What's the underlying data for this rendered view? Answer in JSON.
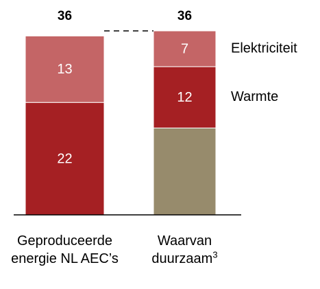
{
  "chart_data": {
    "type": "stacked_bar",
    "categories": [
      "Geproduceerde energie NL AEC’s",
      "Waarvan duurzaam"
    ],
    "category_notes": [
      null,
      "3"
    ],
    "series": [
      {
        "color": "#978b6c",
        "values": [
          null,
          17
        ],
        "show_labels": false
      },
      {
        "name": "Warmte",
        "color": "#a52023",
        "values": [
          22,
          12
        ],
        "show_labels": true
      },
      {
        "name": "Elektriciteit",
        "color": "#c46566",
        "values": [
          13,
          7
        ],
        "show_labels": true
      }
    ],
    "totals": [
      36,
      36
    ],
    "ylim": [
      0,
      36
    ]
  }
}
